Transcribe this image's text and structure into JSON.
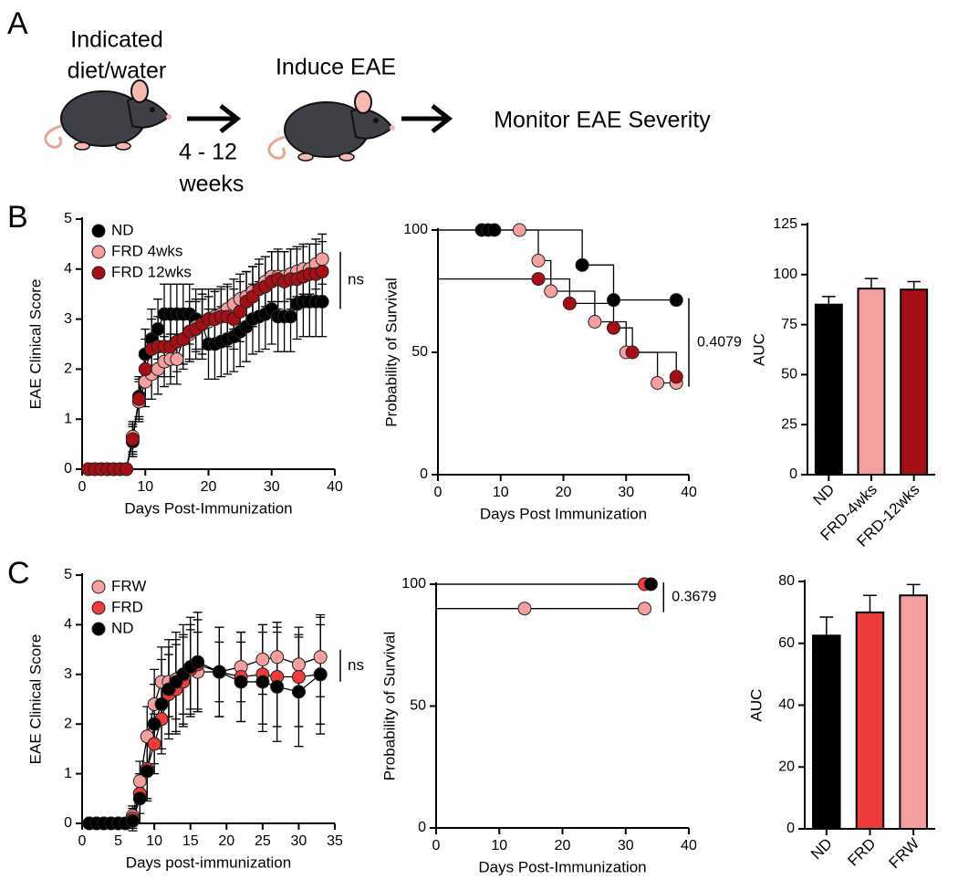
{
  "panel_labels": [
    "A",
    "B",
    "C"
  ],
  "schematic": {
    "step1": [
      "Indicated",
      "diet/water"
    ],
    "duration": [
      "4 - 12",
      "weeks"
    ],
    "step2": "Induce EAE",
    "step3": "Monitor EAE Severity"
  },
  "chart_data": [
    {
      "type": "line",
      "xlabel": "Days Post-Immunization",
      "ylabel": "EAE Clinical Score",
      "x": [
        1,
        2,
        3,
        4,
        5,
        6,
        7,
        8,
        9,
        10,
        11,
        12,
        13,
        14,
        15,
        16,
        17,
        18,
        19,
        20,
        21,
        22,
        23,
        24,
        25,
        26,
        27,
        28,
        29,
        30,
        31,
        32,
        33,
        34,
        35,
        36,
        37,
        38
      ],
      "xlim": [
        0,
        40
      ],
      "xticks": [
        0,
        10,
        20,
        30,
        40
      ],
      "ylim": [
        0,
        5
      ],
      "yticks": [
        0,
        1,
        2,
        3,
        4,
        5
      ],
      "legend": "upper left",
      "annotation": "ns",
      "series": [
        {
          "name": "ND",
          "color": "#000000",
          "values": [
            0,
            0,
            0,
            0,
            0,
            0,
            0,
            0.55,
            1.45,
            2.3,
            2.6,
            2.8,
            3.1,
            3.1,
            3.1,
            3.1,
            3.1,
            3.0,
            2.9,
            2.5,
            2.5,
            2.55,
            2.6,
            2.65,
            2.75,
            2.85,
            3.0,
            3.05,
            3.1,
            3.2,
            3.05,
            3.05,
            3.05,
            3.3,
            3.35,
            3.35,
            3.35,
            3.35
          ],
          "errors": [
            0,
            0,
            0,
            0,
            0,
            0,
            0,
            0.3,
            0.4,
            0.5,
            0.6,
            0.6,
            0.6,
            0.6,
            0.6,
            0.6,
            0.6,
            0.6,
            0.7,
            0.7,
            0.7,
            0.7,
            0.7,
            0.7,
            0.7,
            0.7,
            0.7,
            0.7,
            0.7,
            0.7,
            0.7,
            0.7,
            0.7,
            0.7,
            0.7,
            0.7,
            0.7,
            0.7
          ]
        },
        {
          "name": "FRD 4wks",
          "color": "#f4a0a0",
          "values": [
            0,
            0,
            0,
            0,
            0,
            0,
            0,
            0.65,
            1.35,
            1.75,
            1.9,
            2.0,
            2.15,
            2.2,
            2.2,
            2.6,
            2.7,
            2.85,
            2.9,
            2.95,
            3.05,
            3.1,
            3.2,
            3.3,
            3.4,
            3.45,
            3.55,
            3.6,
            3.75,
            3.85,
            3.85,
            3.85,
            3.9,
            3.95,
            4.0,
            4.0,
            4.1,
            4.2
          ],
          "errors": [
            0,
            0,
            0,
            0,
            0,
            0,
            0,
            0.3,
            0.4,
            0.5,
            0.5,
            0.5,
            0.5,
            0.5,
            0.5,
            0.5,
            0.5,
            0.5,
            0.5,
            0.5,
            0.5,
            0.5,
            0.5,
            0.5,
            0.5,
            0.5,
            0.5,
            0.5,
            0.5,
            0.5,
            0.5,
            0.5,
            0.5,
            0.5,
            0.5,
            0.5,
            0.5,
            0.5
          ]
        },
        {
          "name": "FRD 12wks",
          "color": "#a50f15",
          "values": [
            0,
            0,
            0,
            0,
            0,
            0,
            0,
            0.6,
            1.4,
            2.0,
            2.4,
            2.45,
            2.45,
            2.45,
            2.55,
            2.6,
            2.75,
            2.8,
            2.9,
            3.0,
            3.0,
            3.05,
            3.05,
            3.0,
            3.15,
            3.35,
            3.45,
            3.6,
            3.65,
            3.75,
            3.8,
            3.75,
            3.8,
            3.8,
            3.85,
            3.9,
            3.9,
            3.95
          ],
          "errors": [
            0,
            0,
            0,
            0,
            0,
            0,
            0,
            0.3,
            0.4,
            0.6,
            0.6,
            0.6,
            0.6,
            0.6,
            0.6,
            0.6,
            0.6,
            0.6,
            0.6,
            0.6,
            0.6,
            0.6,
            0.6,
            0.6,
            0.6,
            0.6,
            0.6,
            0.6,
            0.6,
            0.6,
            0.6,
            0.6,
            0.6,
            0.6,
            0.6,
            0.6,
            0.6,
            0.6
          ]
        }
      ]
    },
    {
      "type": "step",
      "xlabel": "Days Post Immunization",
      "ylabel": "Probability of Survival",
      "xlim": [
        0,
        40
      ],
      "xticks": [
        0,
        10,
        20,
        30,
        40
      ],
      "ylim": [
        0,
        100
      ],
      "yticks": [
        0,
        50,
        100
      ],
      "annotation": "0.4079",
      "series": [
        {
          "color": "#000000",
          "x": [
            7,
            8,
            9,
            23,
            28,
            38
          ],
          "values": [
            100,
            100,
            100,
            85.7,
            71.4,
            71.4
          ]
        },
        {
          "color": "#f4a0a0",
          "x": [
            13,
            16,
            18,
            25,
            30,
            35,
            38
          ],
          "values": [
            100,
            87.5,
            75,
            62.5,
            50,
            37.5,
            37.5
          ]
        },
        {
          "color": "#a50f15",
          "x": [
            16,
            21,
            28,
            31,
            38
          ],
          "values": [
            80,
            70,
            60,
            50,
            40
          ]
        }
      ]
    },
    {
      "type": "bar",
      "ylabel": "AUC",
      "categories": [
        "ND",
        "FRD-4wks",
        "FRD-12wks"
      ],
      "values": [
        85,
        93,
        92.5
      ],
      "errors": [
        4,
        5,
        4
      ],
      "colors": [
        "#000000",
        "#f4a0a0",
        "#a50f15"
      ],
      "ylim": [
        0,
        125
      ],
      "yticks": [
        0,
        25,
        50,
        75,
        100,
        125
      ]
    },
    {
      "type": "line",
      "xlabel": "Days post-immunization",
      "ylabel": "EAE Clinical Score",
      "x": [
        1,
        2,
        3,
        4,
        5,
        6,
        7,
        8,
        9,
        10,
        11,
        12,
        13,
        14,
        15,
        16,
        19,
        22,
        25,
        27,
        30,
        33
      ],
      "xlim": [
        0,
        35
      ],
      "xticks": [
        0,
        5,
        10,
        15,
        20,
        25,
        30,
        35
      ],
      "ylim": [
        0,
        5
      ],
      "yticks": [
        0,
        1,
        2,
        3,
        4,
        5
      ],
      "legend": "upper left",
      "annotation": "ns",
      "series": [
        {
          "name": "FRW",
          "color": "#f4a0a0",
          "values": [
            0,
            0,
            0,
            0,
            0,
            0,
            0.15,
            0.85,
            1.75,
            2.4,
            2.85,
            2.85,
            2.9,
            3.0,
            3.1,
            3.05,
            3.05,
            3.15,
            3.3,
            3.35,
            3.2,
            3.35
          ],
          "errors": [
            0,
            0,
            0,
            0,
            0,
            0,
            0.2,
            0.4,
            0.6,
            0.7,
            0.7,
            0.7,
            0.8,
            0.8,
            0.8,
            0.8,
            0.6,
            0.7,
            0.7,
            0.7,
            0.6,
            0.8
          ]
        },
        {
          "name": "FRD",
          "color": "#ef3b3b",
          "values": [
            0,
            0,
            0,
            0,
            0,
            0,
            0.1,
            0.6,
            1.1,
            1.6,
            2.1,
            2.6,
            2.7,
            2.85,
            3.1,
            3.2,
            3.05,
            2.95,
            3.0,
            2.95,
            2.95,
            3.0
          ],
          "errors": [
            0,
            0,
            0,
            0,
            0,
            0,
            0.2,
            0.4,
            0.6,
            0.6,
            0.7,
            0.8,
            0.9,
            0.9,
            0.9,
            0.9,
            0.9,
            0.9,
            1.0,
            1.0,
            1.0,
            1.0
          ]
        },
        {
          "name": "ND",
          "color": "#000000",
          "values": [
            0,
            0,
            0,
            0,
            0,
            0,
            0.05,
            0.5,
            1.05,
            2.0,
            2.4,
            2.7,
            2.85,
            3.0,
            3.15,
            3.25,
            3.05,
            2.85,
            2.85,
            2.75,
            2.65,
            3.0
          ],
          "errors": [
            0,
            0,
            0,
            0,
            0,
            0,
            0.2,
            0.5,
            0.6,
            0.8,
            0.9,
            1.0,
            1.0,
            1.0,
            1.0,
            1.0,
            0.9,
            0.8,
            1.0,
            1.1,
            1.1,
            1.2
          ]
        }
      ]
    },
    {
      "type": "step",
      "xlabel": "Days Post-Immunization",
      "ylabel": "Probability of Survival",
      "xlim": [
        0,
        40
      ],
      "xticks": [
        0,
        10,
        20,
        30,
        40
      ],
      "ylim": [
        0,
        100
      ],
      "yticks": [
        0,
        50,
        100
      ],
      "annotation": "0.3679",
      "series": [
        {
          "color": "#f4a0a0",
          "x": [
            14,
            33
          ],
          "values": [
            90,
            90
          ]
        },
        {
          "color": "#ef3b3b",
          "x": [
            33
          ],
          "values": [
            100
          ]
        },
        {
          "color": "#000000",
          "x": [
            34
          ],
          "values": [
            100
          ]
        }
      ]
    },
    {
      "type": "bar",
      "ylabel": "AUC",
      "categories": [
        "ND",
        "FRD",
        "FRW"
      ],
      "values": [
        62.5,
        70,
        75.5
      ],
      "errors": [
        6,
        5.5,
        3.5
      ],
      "colors": [
        "#000000",
        "#ef3b3b",
        "#f4a0a0"
      ],
      "ylim": [
        0,
        80
      ],
      "yticks": [
        0,
        20,
        40,
        60,
        80
      ]
    }
  ]
}
